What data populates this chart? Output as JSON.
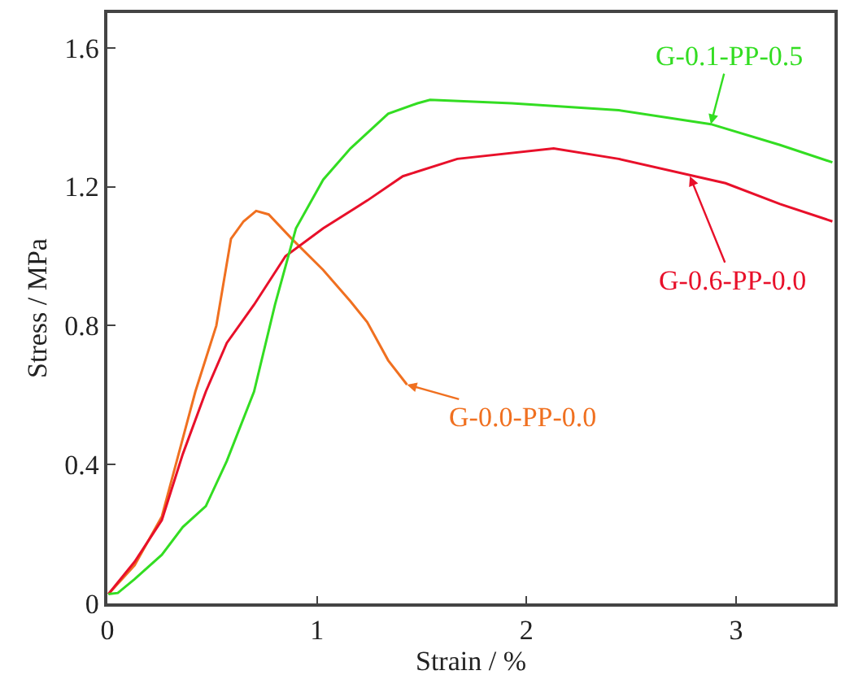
{
  "chart_data": {
    "type": "line",
    "xlabel": "Strain / %",
    "ylabel": "Stress / MPa",
    "xlim": [
      0,
      3.47
    ],
    "ylim": [
      0,
      1.7
    ],
    "xticks": [
      0,
      1,
      2,
      3
    ],
    "yticks": [
      0,
      0.4,
      0.8,
      1.2,
      1.6
    ],
    "marker": "none",
    "line_style": "solid",
    "series": [
      {
        "color": "#f07020",
        "x": [
          0.005,
          0.13,
          0.26,
          0.34,
          0.42,
          0.52,
          0.59,
          0.65,
          0.71,
          0.77,
          0.88,
          1.03,
          1.16,
          1.24,
          1.34,
          1.43
        ],
        "values": [
          0.027,
          0.11,
          0.25,
          0.43,
          0.61,
          0.8,
          1.05,
          1.1,
          1.13,
          1.12,
          1.05,
          0.96,
          0.87,
          0.81,
          0.7,
          0.63
        ]
      },
      {
        "color": "#e8102a",
        "x": [
          0.005,
          0.13,
          0.26,
          0.36,
          0.47,
          0.57,
          0.7,
          0.85,
          1.03,
          1.24,
          1.41,
          1.67,
          2.13,
          2.44,
          2.95,
          3.21,
          3.46
        ],
        "values": [
          0.027,
          0.12,
          0.24,
          0.43,
          0.61,
          0.75,
          0.86,
          1.0,
          1.08,
          1.16,
          1.23,
          1.28,
          1.31,
          1.28,
          1.21,
          1.15,
          1.1
        ]
      },
      {
        "color": "#33dd22",
        "x": [
          0.005,
          0.05,
          0.13,
          0.26,
          0.36,
          0.47,
          0.57,
          0.7,
          0.8,
          0.9,
          1.03,
          1.16,
          1.34,
          1.48,
          1.54,
          1.93,
          2.44,
          2.88,
          3.21,
          3.46
        ],
        "values": [
          0.027,
          0.03,
          0.07,
          0.14,
          0.22,
          0.28,
          0.41,
          0.61,
          0.86,
          1.08,
          1.22,
          1.31,
          1.41,
          1.44,
          1.45,
          1.44,
          1.42,
          1.38,
          1.32,
          1.27
        ]
      }
    ],
    "annotations": [
      {
        "text": "G-0.0-PP-0.0",
        "x": 1.43,
        "y": 0.63
      },
      {
        "text": "G-0.6-PP-0.0",
        "x": 2.78,
        "y": 1.23
      },
      {
        "text": "G-0.1-PP-0.5",
        "x": 2.88,
        "y": 1.38
      }
    ]
  }
}
